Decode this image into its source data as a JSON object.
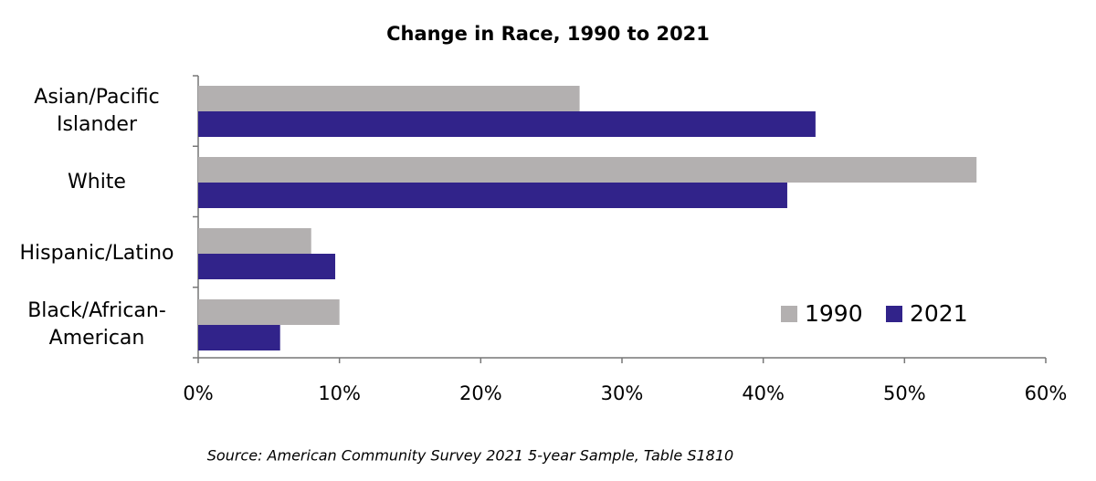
{
  "chart_data": {
    "type": "hbar",
    "title": "Change in Race, 1990 to 2021",
    "categories": [
      "Asian/Pacific Islander",
      "White",
      "Hispanic/Latino",
      "Black/African-American"
    ],
    "series": [
      {
        "name": "1990",
        "color": "#b3b0b0",
        "values": [
          27.0,
          55.1,
          8.0,
          10.0
        ]
      },
      {
        "name": "2021",
        "color": "#31238a",
        "values": [
          43.7,
          41.7,
          9.7,
          5.8
        ]
      }
    ],
    "xlim": [
      0,
      60
    ],
    "xticks": [
      {
        "value": 0,
        "label": "0%"
      },
      {
        "value": 10,
        "label": "10%"
      },
      {
        "value": 20,
        "label": "20%"
      },
      {
        "value": 30,
        "label": "30%"
      },
      {
        "value": 40,
        "label": "40%"
      },
      {
        "value": 50,
        "label": "50%"
      },
      {
        "value": 60,
        "label": "60%"
      }
    ],
    "legend": "lower right",
    "source": "Source: American Community Survey 2021 5-year Sample, Table S1810"
  }
}
